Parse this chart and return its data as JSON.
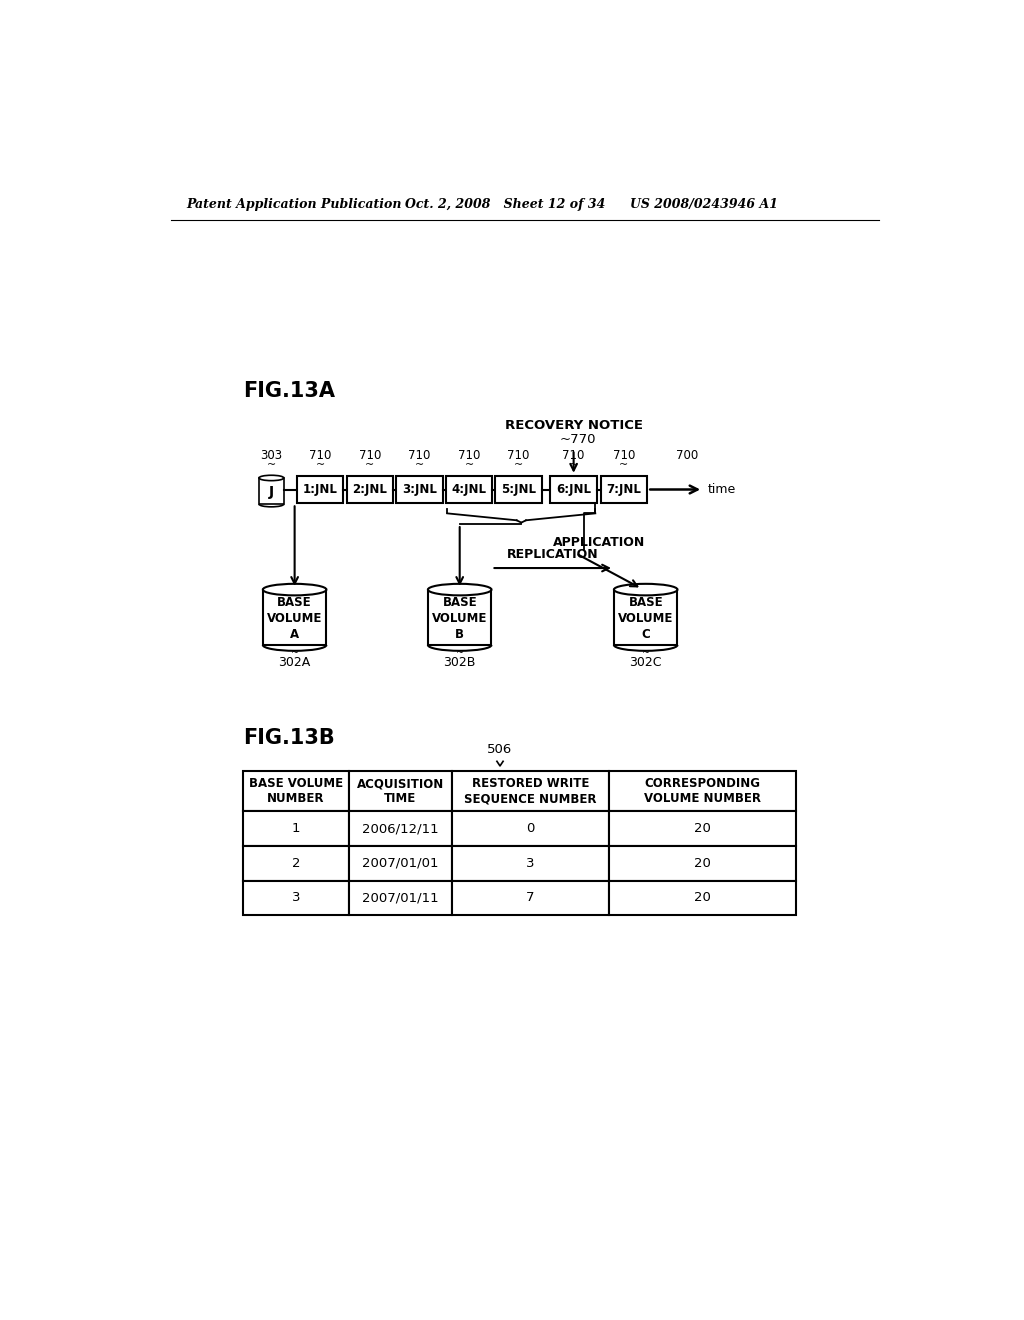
{
  "bg_color": "#ffffff",
  "header_text_left": "Patent Application Publication",
  "header_text_mid": "Oct. 2, 2008   Sheet 12 of 34",
  "header_text_right": "US 2008/0243946 A1",
  "fig13a_label": "FIG.13A",
  "fig13b_label": "FIG.13B",
  "jnl_boxes": [
    "1:JNL",
    "2:JNL",
    "3:JNL",
    "4:JNL",
    "5:JNL",
    "6:JNL",
    "7:JNL"
  ],
  "recovery_notice": "RECOVERY NOTICE",
  "recovery_id": "~770",
  "time_label": "time",
  "application_label": "APPLICATION",
  "replication_label": "REPLICATION",
  "vol_a_lines": [
    "BASE",
    "VOLUME",
    "A"
  ],
  "vol_b_lines": [
    "BASE",
    "VOLUME",
    "B"
  ],
  "vol_c_lines": [
    "BASE",
    "VOLUME",
    "C"
  ],
  "vol_a_id": "302A",
  "vol_b_id": "302B",
  "vol_c_id": "302C",
  "j_label": "J",
  "j_id": "303",
  "jnl_ids": [
    "710",
    "710",
    "710",
    "710",
    "710",
    "710",
    "710"
  ],
  "arrow_id": "700",
  "table_headers": [
    "BASE VOLUME\nNUMBER",
    "ACQUISITION\nTIME",
    "RESTORED WRITE\nSEQUENCE NUMBER",
    "CORRESPONDING\nVOLUME NUMBER"
  ],
  "table_rows": [
    [
      "1",
      "2006/12/11",
      "0",
      "20"
    ],
    [
      "2",
      "2007/01/01",
      "3",
      "20"
    ],
    [
      "3",
      "2007/01/11",
      "7",
      "20"
    ]
  ],
  "table_id": "506"
}
